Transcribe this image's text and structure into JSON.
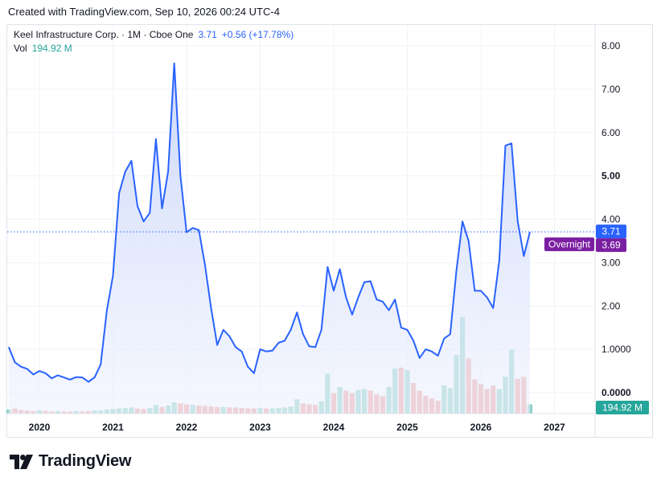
{
  "header": {
    "created_text": "Created with TradingView.com, Sep 10, 2026 00:24 UTC-4"
  },
  "legend": {
    "symbol": "Keel Infrastructure Corp. · 1M · Cboe One",
    "last_price": "3.71",
    "change": "+0.56 (+17.78%)",
    "volume_label": "Vol",
    "volume_value": "194.92 M"
  },
  "badges": {
    "last_price": "3.71",
    "overnight_label": "Overnight",
    "overnight_price": "3.69",
    "volume": "194.92 M"
  },
  "brand": {
    "name": "TradingView"
  },
  "colors": {
    "line": "#2962ff",
    "area_top": "#c9d6fb",
    "vol_up": "#8fd1c8",
    "vol_down": "#f0a2a2",
    "overnight": "#7b1fa2",
    "vol_badge": "#26a69a"
  },
  "chart_data": {
    "type": "area",
    "title": "Keel Infrastructure Corp. · 1M · Cboe One",
    "y_axis_labels": [
      "8.00",
      "7.00",
      "6.00",
      "5.00",
      "4.00",
      "3.00",
      "2.00",
      "1.0000",
      "0.0000"
    ],
    "x_axis_labels": [
      "2020",
      "2021",
      "2022",
      "2023",
      "2024",
      "2025",
      "2026",
      "2027"
    ],
    "ylim": [
      0,
      8
    ],
    "grid": true,
    "series": [
      {
        "values": [
          {
            "x": "2019-08",
            "y": 1.05
          },
          {
            "x": "2019-09",
            "y": 0.7
          },
          {
            "x": "2019-10",
            "y": 0.6
          },
          {
            "x": "2019-11",
            "y": 0.55
          },
          {
            "x": "2019-12",
            "y": 0.42
          },
          {
            "x": "2020-01",
            "y": 0.5
          },
          {
            "x": "2020-02",
            "y": 0.45
          },
          {
            "x": "2020-03",
            "y": 0.33
          },
          {
            "x": "2020-04",
            "y": 0.4
          },
          {
            "x": "2020-05",
            "y": 0.35
          },
          {
            "x": "2020-06",
            "y": 0.3
          },
          {
            "x": "2020-07",
            "y": 0.36
          },
          {
            "x": "2020-08",
            "y": 0.35
          },
          {
            "x": "2020-09",
            "y": 0.25
          },
          {
            "x": "2020-10",
            "y": 0.35
          },
          {
            "x": "2020-11",
            "y": 0.65
          },
          {
            "x": "2020-12",
            "y": 1.9
          },
          {
            "x": "2021-01",
            "y": 2.7
          },
          {
            "x": "2021-02",
            "y": 4.6
          },
          {
            "x": "2021-03",
            "y": 5.1
          },
          {
            "x": "2021-04",
            "y": 5.35
          },
          {
            "x": "2021-05",
            "y": 4.3
          },
          {
            "x": "2021-06",
            "y": 3.95
          },
          {
            "x": "2021-07",
            "y": 4.15
          },
          {
            "x": "2021-08",
            "y": 5.85
          },
          {
            "x": "2021-09",
            "y": 4.25
          },
          {
            "x": "2021-10",
            "y": 5.1
          },
          {
            "x": "2021-11",
            "y": 7.6
          },
          {
            "x": "2021-12",
            "y": 5.0
          },
          {
            "x": "2022-01",
            "y": 3.7
          },
          {
            "x": "2022-02",
            "y": 3.8
          },
          {
            "x": "2022-03",
            "y": 3.75
          },
          {
            "x": "2022-04",
            "y": 2.95
          },
          {
            "x": "2022-05",
            "y": 1.95
          },
          {
            "x": "2022-06",
            "y": 1.1
          },
          {
            "x": "2022-07",
            "y": 1.45
          },
          {
            "x": "2022-08",
            "y": 1.3
          },
          {
            "x": "2022-09",
            "y": 1.05
          },
          {
            "x": "2022-10",
            "y": 0.95
          },
          {
            "x": "2022-11",
            "y": 0.6
          },
          {
            "x": "2022-12",
            "y": 0.45
          },
          {
            "x": "2023-01",
            "y": 1.0
          },
          {
            "x": "2023-02",
            "y": 0.95
          },
          {
            "x": "2023-03",
            "y": 0.97
          },
          {
            "x": "2023-04",
            "y": 1.15
          },
          {
            "x": "2023-05",
            "y": 1.2
          },
          {
            "x": "2023-06",
            "y": 1.45
          },
          {
            "x": "2023-07",
            "y": 1.85
          },
          {
            "x": "2023-08",
            "y": 1.35
          },
          {
            "x": "2023-09",
            "y": 1.07
          },
          {
            "x": "2023-10",
            "y": 1.05
          },
          {
            "x": "2023-11",
            "y": 1.45
          },
          {
            "x": "2023-12",
            "y": 2.9
          },
          {
            "x": "2024-01",
            "y": 2.35
          },
          {
            "x": "2024-02",
            "y": 2.85
          },
          {
            "x": "2024-03",
            "y": 2.2
          },
          {
            "x": "2024-04",
            "y": 1.8
          },
          {
            "x": "2024-05",
            "y": 2.2
          },
          {
            "x": "2024-06",
            "y": 2.55
          },
          {
            "x": "2024-07",
            "y": 2.57
          },
          {
            "x": "2024-08",
            "y": 2.15
          },
          {
            "x": "2024-09",
            "y": 2.1
          },
          {
            "x": "2024-10",
            "y": 1.9
          },
          {
            "x": "2024-11",
            "y": 2.15
          },
          {
            "x": "2024-12",
            "y": 1.5
          },
          {
            "x": "2025-01",
            "y": 1.45
          },
          {
            "x": "2025-02",
            "y": 1.2
          },
          {
            "x": "2025-03",
            "y": 0.8
          },
          {
            "x": "2025-04",
            "y": 1.0
          },
          {
            "x": "2025-05",
            "y": 0.95
          },
          {
            "x": "2025-06",
            "y": 0.85
          },
          {
            "x": "2025-07",
            "y": 1.25
          },
          {
            "x": "2025-08",
            "y": 1.35
          },
          {
            "x": "2025-09",
            "y": 2.8
          },
          {
            "x": "2025-10",
            "y": 3.95
          },
          {
            "x": "2025-11",
            "y": 3.5
          },
          {
            "x": "2025-12",
            "y": 2.35
          },
          {
            "x": "2026-01",
            "y": 2.35
          },
          {
            "x": "2026-02",
            "y": 2.2
          },
          {
            "x": "2026-03",
            "y": 1.95
          },
          {
            "x": "2026-04",
            "y": 3.05
          },
          {
            "x": "2026-05",
            "y": 5.7
          },
          {
            "x": "2026-06",
            "y": 5.75
          },
          {
            "x": "2026-07",
            "y": 3.95
          },
          {
            "x": "2026-08",
            "y": 3.15
          },
          {
            "x": "2026-09",
            "y": 3.71
          }
        ]
      }
    ],
    "volume": {
      "values": [
        {
          "y": 8,
          "up": true
        },
        {
          "y": 10,
          "up": false
        },
        {
          "y": 7,
          "up": false
        },
        {
          "y": 6,
          "up": false
        },
        {
          "y": 5,
          "up": false
        },
        {
          "y": 6,
          "up": true
        },
        {
          "y": 5,
          "up": false
        },
        {
          "y": 4,
          "up": false
        },
        {
          "y": 5,
          "up": true
        },
        {
          "y": 4,
          "up": false
        },
        {
          "y": 4,
          "up": false
        },
        {
          "y": 5,
          "up": true
        },
        {
          "y": 4,
          "up": false
        },
        {
          "y": 5,
          "up": false
        },
        {
          "y": 6,
          "up": true
        },
        {
          "y": 6,
          "up": true
        },
        {
          "y": 8,
          "up": true
        },
        {
          "y": 9,
          "up": true
        },
        {
          "y": 10,
          "up": true
        },
        {
          "y": 11,
          "up": true
        },
        {
          "y": 12,
          "up": true
        },
        {
          "y": 10,
          "up": false
        },
        {
          "y": 9,
          "up": false
        },
        {
          "y": 11,
          "up": true
        },
        {
          "y": 17,
          "up": true
        },
        {
          "y": 13,
          "up": false
        },
        {
          "y": 16,
          "up": true
        },
        {
          "y": 22,
          "up": true
        },
        {
          "y": 20,
          "up": false
        },
        {
          "y": 18,
          "up": false
        },
        {
          "y": 17,
          "up": true
        },
        {
          "y": 16,
          "up": false
        },
        {
          "y": 15,
          "up": false
        },
        {
          "y": 14,
          "up": false
        },
        {
          "y": 13,
          "up": false
        },
        {
          "y": 13,
          "up": true
        },
        {
          "y": 12,
          "up": false
        },
        {
          "y": 12,
          "up": false
        },
        {
          "y": 11,
          "up": false
        },
        {
          "y": 10,
          "up": false
        },
        {
          "y": 10,
          "up": false
        },
        {
          "y": 11,
          "up": true
        },
        {
          "y": 10,
          "up": false
        },
        {
          "y": 10,
          "up": true
        },
        {
          "y": 11,
          "up": true
        },
        {
          "y": 12,
          "up": true
        },
        {
          "y": 14,
          "up": true
        },
        {
          "y": 28,
          "up": true
        },
        {
          "y": 20,
          "up": false
        },
        {
          "y": 18,
          "up": false
        },
        {
          "y": 17,
          "up": false
        },
        {
          "y": 24,
          "up": true
        },
        {
          "y": 78,
          "up": true
        },
        {
          "y": 40,
          "up": false
        },
        {
          "y": 52,
          "up": true
        },
        {
          "y": 45,
          "up": false
        },
        {
          "y": 40,
          "up": false
        },
        {
          "y": 46,
          "up": true
        },
        {
          "y": 48,
          "up": true
        },
        {
          "y": 45,
          "up": false
        },
        {
          "y": 38,
          "up": false
        },
        {
          "y": 34,
          "up": false
        },
        {
          "y": 52,
          "up": true
        },
        {
          "y": 88,
          "up": true
        },
        {
          "y": 90,
          "up": false
        },
        {
          "y": 85,
          "up": true
        },
        {
          "y": 60,
          "up": false
        },
        {
          "y": 45,
          "up": false
        },
        {
          "y": 35,
          "up": false
        },
        {
          "y": 30,
          "up": false
        },
        {
          "y": 25,
          "up": false
        },
        {
          "y": 55,
          "up": true
        },
        {
          "y": 50,
          "up": true
        },
        {
          "y": 115,
          "up": true
        },
        {
          "y": 189,
          "up": true
        },
        {
          "y": 108,
          "up": false
        },
        {
          "y": 67,
          "up": false
        },
        {
          "y": 58,
          "up": false
        },
        {
          "y": 48,
          "up": false
        },
        {
          "y": 55,
          "up": false
        },
        {
          "y": 48,
          "up": true
        },
        {
          "y": 72,
          "up": true
        },
        {
          "y": 125,
          "up": true
        },
        {
          "y": 68,
          "up": false
        },
        {
          "y": 72,
          "up": false
        },
        {
          "y": 18,
          "up": true
        }
      ]
    },
    "last_value": 3.71,
    "overnight_value": 3.69
  }
}
